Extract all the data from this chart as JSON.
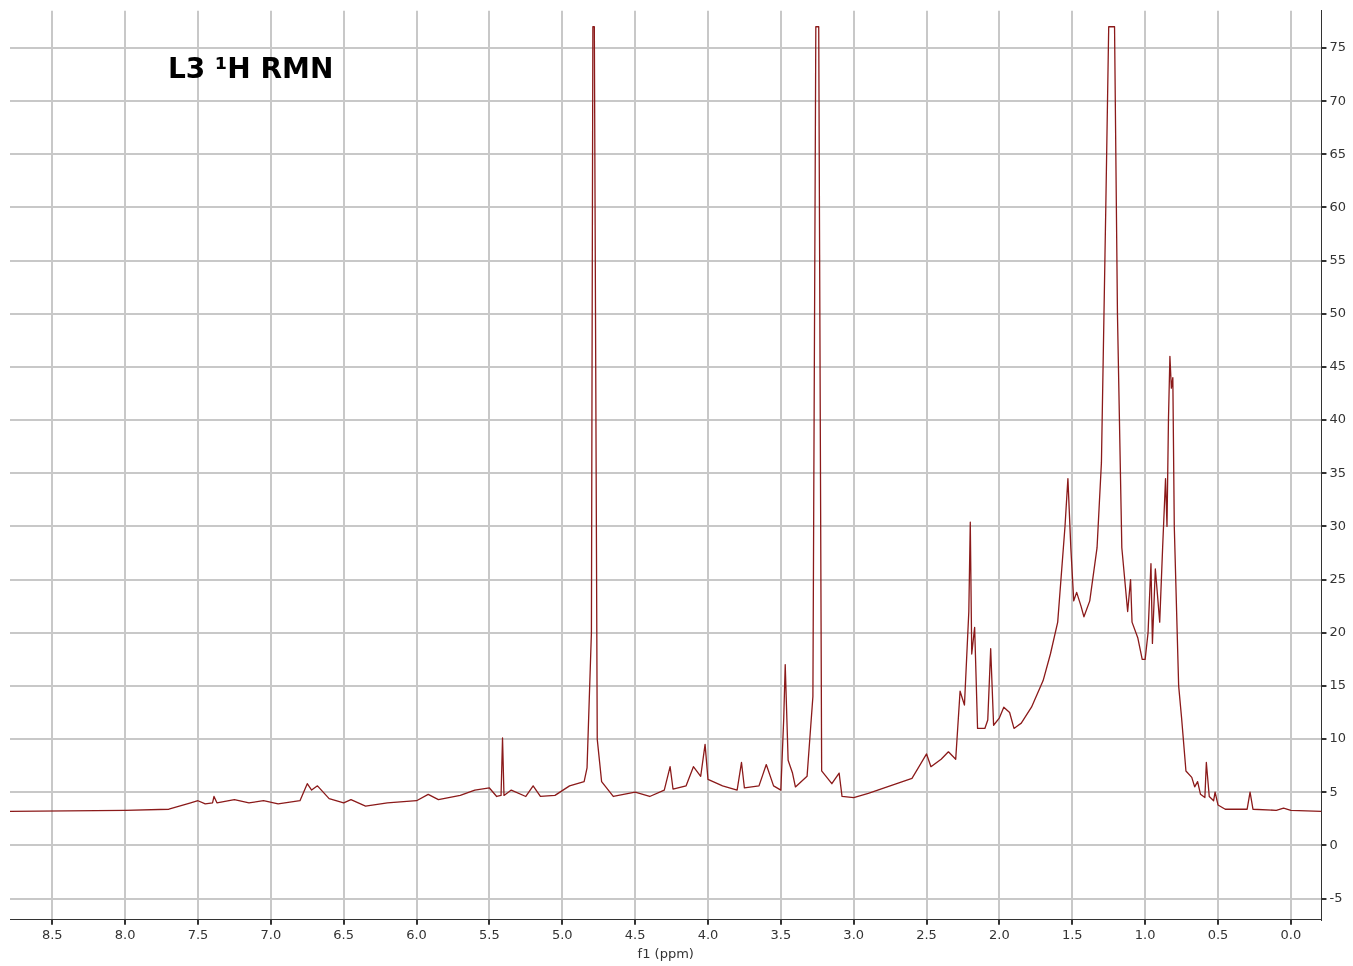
{
  "chart_data": {
    "type": "line",
    "title": "L3 ¹H RMN",
    "xlabel": "f1 (ppm)",
    "xlim": [
      8.79,
      -0.21
    ],
    "xticks": [
      {
        "value": 8.5,
        "label": "8.5"
      },
      {
        "value": 8,
        "label": "8.0"
      },
      {
        "value": 7.5,
        "label": "7.5"
      },
      {
        "value": 7,
        "label": "7.0"
      },
      {
        "value": 6.5,
        "label": "6.5"
      },
      {
        "value": 6,
        "label": "6.0"
      },
      {
        "value": 5.5,
        "label": "5.5"
      },
      {
        "value": 5,
        "label": "5.0"
      },
      {
        "value": 4.5,
        "label": "4.5"
      },
      {
        "value": 4,
        "label": "4.0"
      },
      {
        "value": 3.5,
        "label": "3.5"
      },
      {
        "value": 3,
        "label": "3.0"
      },
      {
        "value": 2.5,
        "label": "2.5"
      },
      {
        "value": 2,
        "label": "2.0"
      },
      {
        "value": 1.5,
        "label": "1.5"
      },
      {
        "value": 1,
        "label": "1.0"
      },
      {
        "value": 0.5,
        "label": "0.5"
      },
      {
        "value": 0,
        "label": "0.0"
      }
    ],
    "ylim": [
      -7,
      78.5
    ],
    "yticks": [
      -5,
      0,
      5,
      10,
      15,
      20,
      25,
      30,
      35,
      40,
      45,
      50,
      55,
      60,
      65,
      70,
      75
    ],
    "grid": true,
    "legend": false,
    "marker": "none",
    "line_style": "solid",
    "x": [
      8.79,
      8.0,
      7.7,
      7.55,
      7.5,
      7.45,
      7.4,
      7.39,
      7.37,
      7.25,
      7.15,
      7.05,
      6.95,
      6.8,
      6.75,
      6.72,
      6.68,
      6.6,
      6.5,
      6.45,
      6.35,
      6.2,
      6.0,
      5.92,
      5.85,
      5.7,
      5.6,
      5.5,
      5.45,
      5.42,
      5.41,
      5.4,
      5.35,
      5.25,
      5.2,
      5.15,
      5.05,
      4.95,
      4.85,
      4.83,
      4.8,
      4.79,
      4.78,
      4.76,
      4.73,
      4.65,
      4.5,
      4.4,
      4.3,
      4.26,
      4.24,
      4.15,
      4.1,
      4.05,
      4.02,
      4.0,
      3.9,
      3.8,
      3.77,
      3.75,
      3.65,
      3.6,
      3.55,
      3.5,
      3.48,
      3.47,
      3.45,
      3.42,
      3.4,
      3.32,
      3.28,
      3.26,
      3.24,
      3.22,
      3.15,
      3.1,
      3.08,
      3.0,
      2.9,
      2.75,
      2.6,
      2.5,
      2.47,
      2.4,
      2.35,
      2.3,
      2.27,
      2.24,
      2.21,
      2.2,
      2.19,
      2.17,
      2.15,
      2.1,
      2.08,
      2.06,
      2.04,
      2.0,
      1.97,
      1.93,
      1.9,
      1.85,
      1.78,
      1.7,
      1.65,
      1.6,
      1.55,
      1.53,
      1.51,
      1.49,
      1.47,
      1.44,
      1.42,
      1.38,
      1.33,
      1.3,
      1.27,
      1.25,
      1.21,
      1.19,
      1.16,
      1.12,
      1.1,
      1.09,
      1.05,
      1.02,
      1.0,
      0.98,
      0.96,
      0.95,
      0.93,
      0.9,
      0.88,
      0.86,
      0.85,
      0.84,
      0.83,
      0.82,
      0.81,
      0.8,
      0.77,
      0.75,
      0.72,
      0.68,
      0.66,
      0.64,
      0.62,
      0.59,
      0.58,
      0.56,
      0.53,
      0.52,
      0.5,
      0.45,
      0.3,
      0.28,
      0.26,
      0.1,
      0.05,
      0,
      -0.21
    ],
    "series": [
      {
        "color": "#8b1a1a",
        "values": [
          3.2,
          3.3,
          3.4,
          4.0,
          4.2,
          3.9,
          4.0,
          4.6,
          4.0,
          4.3,
          4.0,
          4.2,
          3.9,
          4.2,
          5.8,
          5.2,
          5.6,
          4.4,
          4.0,
          4.3,
          3.7,
          4.0,
          4.2,
          4.8,
          4.3,
          4.7,
          5.2,
          5.4,
          4.6,
          4.7,
          10.1,
          4.7,
          5.2,
          4.6,
          5.6,
          4.6,
          4.7,
          5.6,
          6.0,
          7.3,
          20,
          77,
          77,
          10,
          6.0,
          4.6,
          5.0,
          4.6,
          5.2,
          7.4,
          5.3,
          5.6,
          7.4,
          6.5,
          9.5,
          6.2,
          5.6,
          5.2,
          7.8,
          5.4,
          5.6,
          7.6,
          5.6,
          5.2,
          12,
          17,
          8,
          6.8,
          5.5,
          6.5,
          14,
          77,
          77,
          7,
          5.8,
          6.8,
          4.6,
          4.5,
          4.9,
          5.6,
          6.3,
          8.6,
          7.4,
          8.1,
          8.8,
          8.1,
          14.5,
          13.2,
          22,
          30.4,
          18,
          20.5,
          11,
          11,
          11.8,
          18.5,
          11.3,
          12,
          13,
          12.5,
          11,
          11.5,
          13,
          15.5,
          18,
          21,
          30,
          34.5,
          28,
          23,
          23.8,
          22.5,
          21.5,
          23,
          28,
          36,
          60,
          77,
          77,
          50,
          28,
          22,
          25,
          21,
          19.5,
          17.5,
          17.5,
          20,
          26.5,
          19,
          26,
          21,
          28,
          34.5,
          30,
          40,
          46,
          43,
          44,
          30,
          15,
          12,
          7,
          6.4,
          5.5,
          6.0,
          4.8,
          4.5,
          7.8,
          4.6,
          4.2,
          5.0,
          3.8,
          3.4,
          3.4,
          5.0,
          3.4,
          3.3,
          3.5,
          3.3,
          3.2
        ]
      }
    ]
  }
}
